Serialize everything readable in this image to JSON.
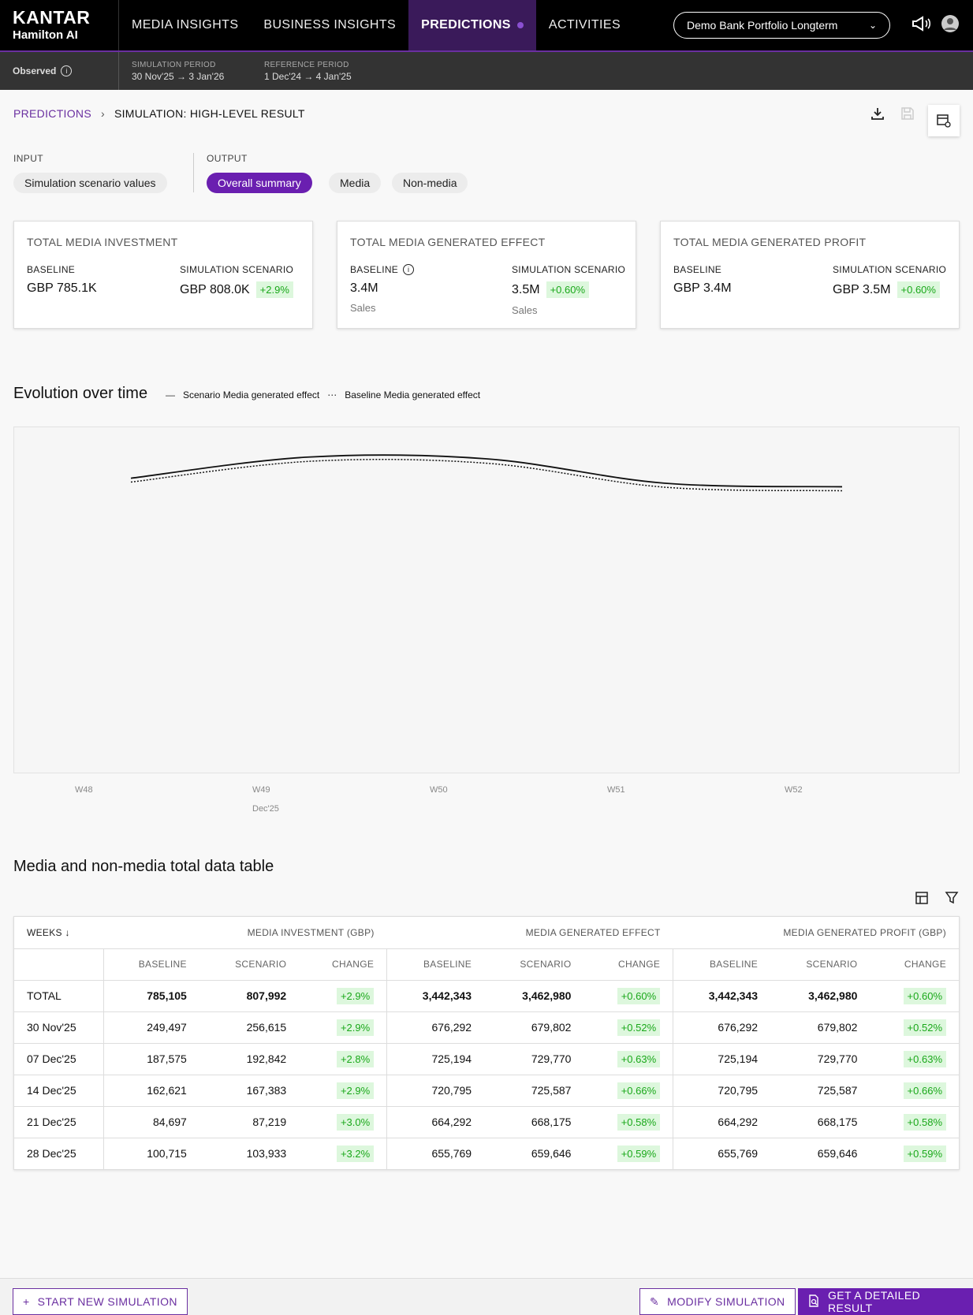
{
  "brand": {
    "line1": "KANTAR",
    "line2": "Hamilton AI"
  },
  "nav": {
    "items": [
      {
        "label": "MEDIA INSIGHTS"
      },
      {
        "label": "BUSINESS INSIGHTS"
      },
      {
        "label": "PREDICTIONS",
        "active": true
      },
      {
        "label": "ACTIVITIES"
      }
    ],
    "portfolio": "Demo Bank Portfolio Longterm"
  },
  "subheader": {
    "observed": "Observed",
    "simulation_period_label": "SIMULATION PERIOD",
    "simulation_period": "30 Nov'25 → 3 Jan'26",
    "reference_period_label": "REFERENCE PERIOD",
    "reference_period": "1 Dec'24 → 4 Jan'25"
  },
  "breadcrumb": {
    "parent": "PREDICTIONS",
    "current": "SIMULATION: HIGH-LEVEL RESULT"
  },
  "io": {
    "input_label": "INPUT",
    "output_label": "OUTPUT",
    "input_chip": "Simulation scenario values",
    "output_chips": [
      "Overall summary",
      "Media",
      "Non-media"
    ]
  },
  "kpis": [
    {
      "title": "TOTAL MEDIA INVESTMENT",
      "baseline_label": "BASELINE",
      "baseline": "GBP 785.1K",
      "scenario_label": "SIMULATION SCENARIO",
      "scenario": "GBP 808.0K",
      "change": "+2.9%",
      "unit": ""
    },
    {
      "title": "TOTAL MEDIA GENERATED EFFECT",
      "baseline_label": "BASELINE",
      "baseline": "3.4M",
      "scenario_label": "SIMULATION SCENARIO",
      "scenario": "3.5M",
      "change": "+0.60%",
      "unit": "Sales"
    },
    {
      "title": "TOTAL MEDIA GENERATED PROFIT",
      "baseline_label": "BASELINE",
      "baseline": "GBP 3.4M",
      "scenario_label": "SIMULATION SCENARIO",
      "scenario": "GBP 3.5M",
      "change": "+0.60%",
      "unit": ""
    }
  ],
  "chart": {
    "title": "Evolution over time",
    "legend_scenario": "Scenario Media generated effect",
    "legend_baseline": "Baseline Media generated effect",
    "month_label": "Dec'25"
  },
  "chart_data": {
    "type": "line",
    "title": "Evolution over time",
    "x": [
      "W48",
      "W49",
      "W50",
      "W51",
      "W52"
    ],
    "series": [
      {
        "name": "Scenario Media generated effect",
        "values": [
          679802,
          729770,
          725587,
          668175,
          659646
        ]
      },
      {
        "name": "Baseline Media generated effect",
        "values": [
          676292,
          725194,
          720795,
          664292,
          655769
        ]
      }
    ],
    "legend": "top-left",
    "grid": false
  },
  "table": {
    "title": "Media and non-media total data table",
    "weeks_label": "WEEKS",
    "groups": [
      "MEDIA INVESTMENT (GBP)",
      "MEDIA GENERATED EFFECT",
      "MEDIA GENERATED PROFIT (GBP)"
    ],
    "sub_headers": [
      "BASELINE",
      "SCENARIO",
      "CHANGE"
    ],
    "rows": [
      {
        "week": "TOTAL",
        "cells": [
          "785,105",
          "807,992",
          "+2.9%",
          "3,442,343",
          "3,462,980",
          "+0.60%",
          "3,442,343",
          "3,462,980",
          "+0.60%"
        ]
      },
      {
        "week": "30 Nov'25",
        "cells": [
          "249,497",
          "256,615",
          "+2.9%",
          "676,292",
          "679,802",
          "+0.52%",
          "676,292",
          "679,802",
          "+0.52%"
        ]
      },
      {
        "week": "07 Dec'25",
        "cells": [
          "187,575",
          "192,842",
          "+2.8%",
          "725,194",
          "729,770",
          "+0.63%",
          "725,194",
          "729,770",
          "+0.63%"
        ]
      },
      {
        "week": "14 Dec'25",
        "cells": [
          "162,621",
          "167,383",
          "+2.9%",
          "720,795",
          "725,587",
          "+0.66%",
          "720,795",
          "725,587",
          "+0.66%"
        ]
      },
      {
        "week": "21 Dec'25",
        "cells": [
          "84,697",
          "87,219",
          "+3.0%",
          "664,292",
          "668,175",
          "+0.58%",
          "664,292",
          "668,175",
          "+0.58%"
        ]
      },
      {
        "week": "28 Dec'25",
        "cells": [
          "100,715",
          "103,933",
          "+3.2%",
          "655,769",
          "659,646",
          "+0.59%",
          "655,769",
          "659,646",
          "+0.59%"
        ]
      }
    ]
  },
  "footer": {
    "start": "START NEW SIMULATION",
    "modify": "MODIFY SIMULATION",
    "detailed": "GET A DETAILED RESULT"
  },
  "colors": {
    "accent": "#6a1fb0",
    "positive": "#1aa81a",
    "positive_bg": "#ddf7dd"
  }
}
